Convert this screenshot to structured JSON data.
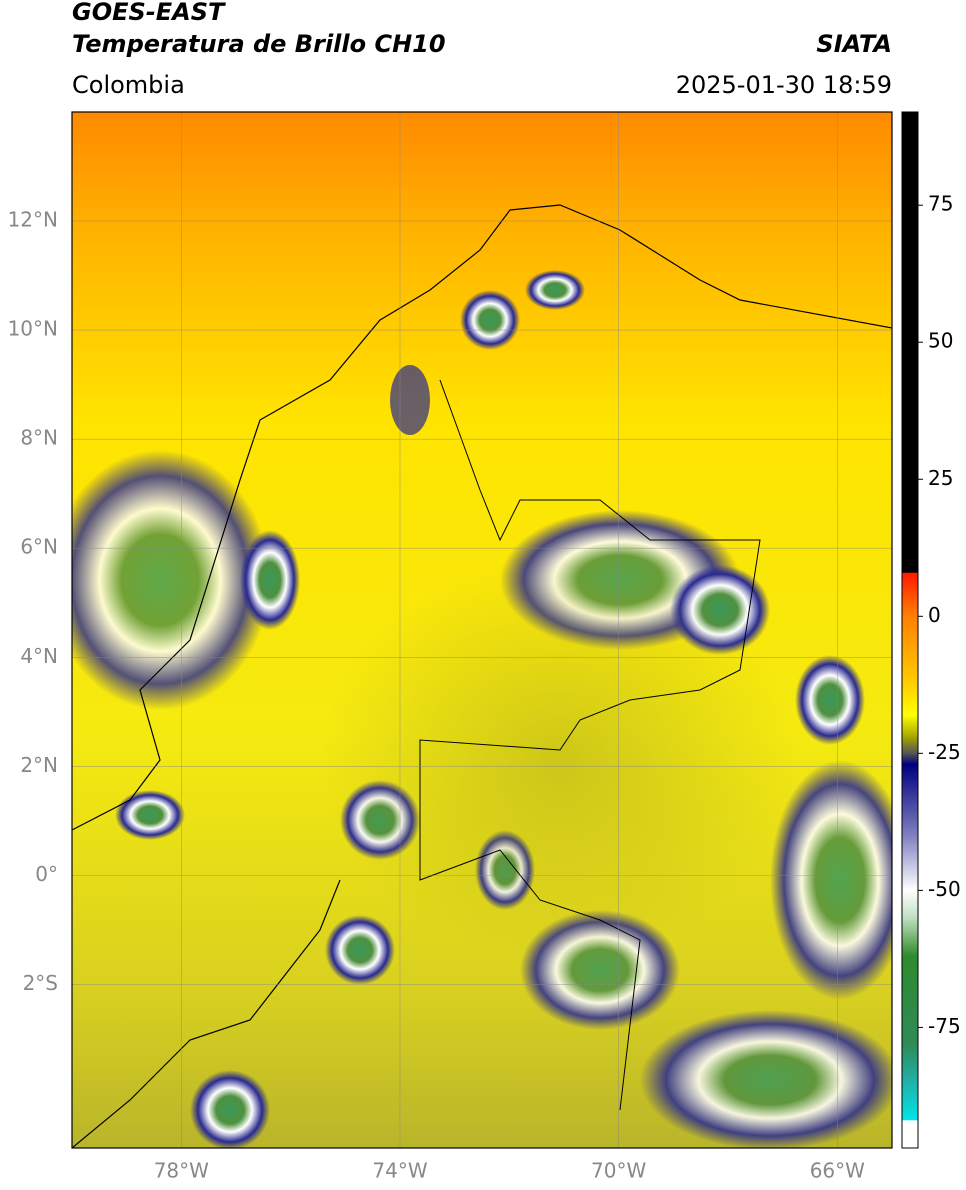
{
  "header": {
    "title": "GOES-EAST",
    "subtitle": "Temperatura de Brillo CH10",
    "source": "SIATA",
    "region": "Colombia",
    "datetime": "2025-01-30 18:59"
  },
  "map": {
    "xlim": [
      -80,
      -65
    ],
    "ylim": [
      -5,
      14
    ],
    "grid": true,
    "xticks": [
      {
        "value": -78,
        "label": "78°W"
      },
      {
        "value": -74,
        "label": "74°W"
      },
      {
        "value": -70,
        "label": "70°W"
      },
      {
        "value": -66,
        "label": "66°W"
      }
    ],
    "yticks": [
      {
        "value": 12,
        "label": "12°N"
      },
      {
        "value": 10,
        "label": "10°N"
      },
      {
        "value": 8,
        "label": "8°N"
      },
      {
        "value": 6,
        "label": "6°N"
      },
      {
        "value": 4,
        "label": "4°N"
      },
      {
        "value": 2,
        "label": "2°N"
      },
      {
        "value": 0,
        "label": "0°"
      },
      {
        "value": -2,
        "label": "2°S"
      }
    ]
  },
  "colorbar": {
    "clim": [
      -97,
      92
    ],
    "ticks": [
      75,
      50,
      25,
      0,
      -25,
      -50,
      -75
    ],
    "colormap": [
      {
        "value": 92,
        "color": "#000000"
      },
      {
        "value": 8,
        "color": "#000000"
      },
      {
        "value": 7.9,
        "color": "#ff1a00"
      },
      {
        "value": 0,
        "color": "#ff8000"
      },
      {
        "value": -12,
        "color": "#ffcc00"
      },
      {
        "value": -18,
        "color": "#ffff00"
      },
      {
        "value": -22,
        "color": "#a6a600"
      },
      {
        "value": -25,
        "color": "#555555"
      },
      {
        "value": -27,
        "color": "#000080"
      },
      {
        "value": -40,
        "color": "#8080c0"
      },
      {
        "value": -50,
        "color": "#ffffff"
      },
      {
        "value": -55,
        "color": "#c0e0c0"
      },
      {
        "value": -62,
        "color": "#2e8b2e"
      },
      {
        "value": -78,
        "color": "#2e8b57"
      },
      {
        "value": -85,
        "color": "#20b2aa"
      },
      {
        "value": -91.9,
        "color": "#00e5e5"
      },
      {
        "value": -92,
        "color": "#ffffff"
      },
      {
        "value": -97,
        "color": "#ffffff"
      }
    ]
  }
}
